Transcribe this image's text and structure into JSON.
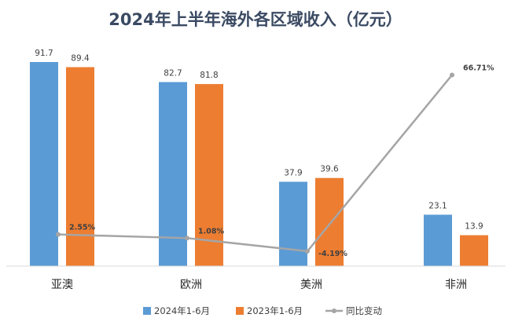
{
  "chart_data": {
    "type": "bar",
    "title": "2024年上半年海外各区域收入（亿元）",
    "categories": [
      "亚澳",
      "欧洲",
      "美洲",
      "非洲"
    ],
    "series": [
      {
        "name": "2024年1-6月",
        "type": "bar",
        "values": [
          91.7,
          82.7,
          37.9,
          23.1
        ],
        "labels": [
          "91.7",
          "82.7",
          "37.9",
          "23.1"
        ],
        "color": "#5b9bd5"
      },
      {
        "name": "2023年1-6月",
        "type": "bar",
        "values": [
          89.4,
          81.8,
          39.6,
          13.9
        ],
        "labels": [
          "89.4",
          "81.8",
          "39.6",
          "13.9"
        ],
        "color": "#ed7d31"
      },
      {
        "name": "同比变动",
        "type": "line",
        "values": [
          2.55,
          1.08,
          -4.19,
          66.71
        ],
        "labels": [
          "2.55%",
          "1.08%",
          "-4.19%",
          "66.71%"
        ],
        "color": "#a5a5a5"
      }
    ],
    "legend_position": "bottom",
    "grid": false
  }
}
